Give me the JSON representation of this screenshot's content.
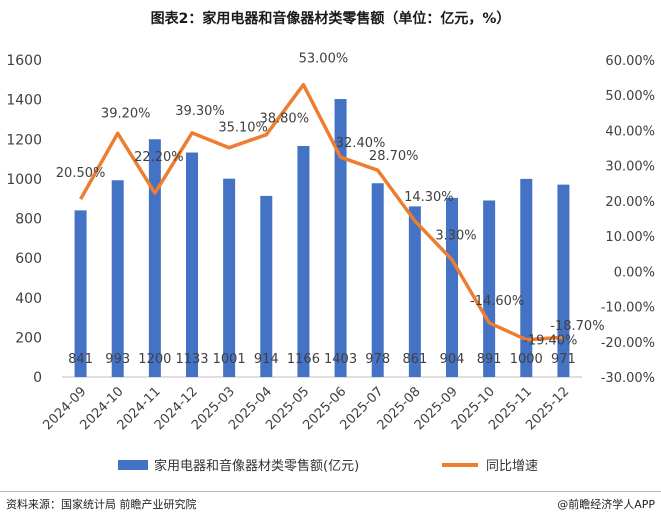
{
  "title": "图表2：家用电器和音像器材类零售额（单位：亿元，%）",
  "source": "资料来源：国家统计局 前瞻产业研究院",
  "brand": "@前瞻经济学人APP",
  "colors": {
    "bar": "#4472C4",
    "line": "#ED7D31"
  },
  "chart_data": {
    "type": "bar",
    "categories": [
      "2024-09",
      "2024-10",
      "2024-11",
      "2024-12",
      "2025-03",
      "2025-04",
      "2025-05",
      "2025-06",
      "2025-07",
      "2025-08",
      "2025-09",
      "2025-10",
      "2025-11",
      "2025-12"
    ],
    "series": [
      {
        "name": "家用电器和音像器材类零售额(亿元)",
        "type": "bar",
        "axis": "left",
        "values": [
          841,
          993,
          1200,
          1133,
          1001,
          914,
          1166,
          1403,
          978,
          861,
          904,
          891,
          1000,
          971
        ],
        "labels": [
          "841",
          "993",
          "1200",
          "1133",
          "1001",
          "914",
          "1166",
          "1403",
          "978",
          "861",
          "904",
          "891",
          "1000",
          "971"
        ]
      },
      {
        "name": "同比增速",
        "type": "line",
        "axis": "right",
        "values": [
          20.5,
          39.2,
          22.2,
          39.3,
          35.1,
          38.8,
          53.0,
          32.4,
          28.7,
          14.3,
          3.3,
          -14.6,
          -19.4,
          -18.7
        ],
        "labels": [
          "20.50%",
          "39.20%",
          "22.20%",
          "39.30%",
          "35.10%",
          "38.80%",
          "53.00%",
          "32.40%",
          "28.70%",
          "14.30%",
          "3.30%",
          "-14.60%",
          "-19.40%",
          "-18.70%"
        ]
      }
    ],
    "ylim_left": [
      0,
      1600
    ],
    "yticks_left": [
      "0",
      "200",
      "400",
      "600",
      "800",
      "1000",
      "1200",
      "1400",
      "1600"
    ],
    "ylim_right": [
      -30,
      60
    ],
    "yticks_right": [
      "-30.00%",
      "-20.00%",
      "-10.00%",
      "0.00%",
      "10.00%",
      "20.00%",
      "30.00%",
      "40.00%",
      "50.00%",
      "60.00%"
    ],
    "grid": false,
    "legend": "bottom"
  }
}
